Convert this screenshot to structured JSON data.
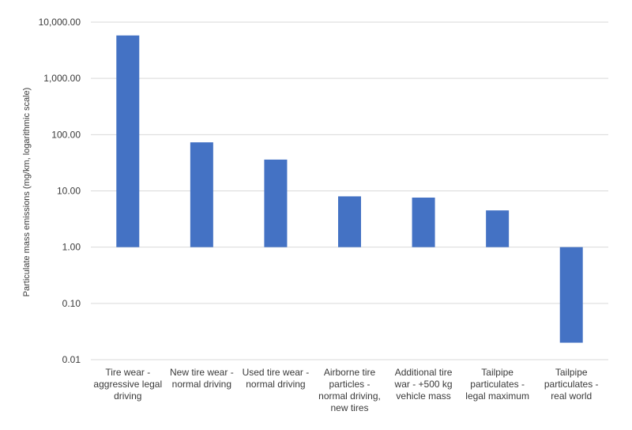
{
  "chart_data": {
    "type": "bar",
    "title": "",
    "xlabel": "",
    "ylabel": "Particulate mass emissions (mg/km, logarithmic scale)",
    "y_scale": "log",
    "ylim": [
      0.01,
      10000
    ],
    "baseline": 1,
    "grid": true,
    "bar_color": "#4472C4",
    "grid_color": "#d9d9d9",
    "y_ticks": [
      {
        "value": 10000,
        "label": "10,000.00"
      },
      {
        "value": 1000,
        "label": "1,000.00"
      },
      {
        "value": 100,
        "label": "100.00"
      },
      {
        "value": 10,
        "label": "10.00"
      },
      {
        "value": 1,
        "label": "1.00"
      },
      {
        "value": 0.1,
        "label": "0.10"
      },
      {
        "value": 0.01,
        "label": "0.01"
      }
    ],
    "categories": [
      [
        "Tire wear -",
        "aggressive legal",
        "driving"
      ],
      [
        "New tire wear -",
        "normal driving"
      ],
      [
        "Used tire wear -",
        "normal driving"
      ],
      [
        "Airborne tire",
        "particles -",
        "normal driving,",
        "new tires"
      ],
      [
        "Additional tire",
        "war - +500 kg",
        "vehicle mass"
      ],
      [
        "Tailpipe",
        "particulates -",
        "legal maximum"
      ],
      [
        "Tailpipe",
        "particulates -",
        "real world"
      ]
    ],
    "values": [
      5800,
      73,
      36,
      8,
      7.6,
      4.5,
      0.02
    ]
  }
}
